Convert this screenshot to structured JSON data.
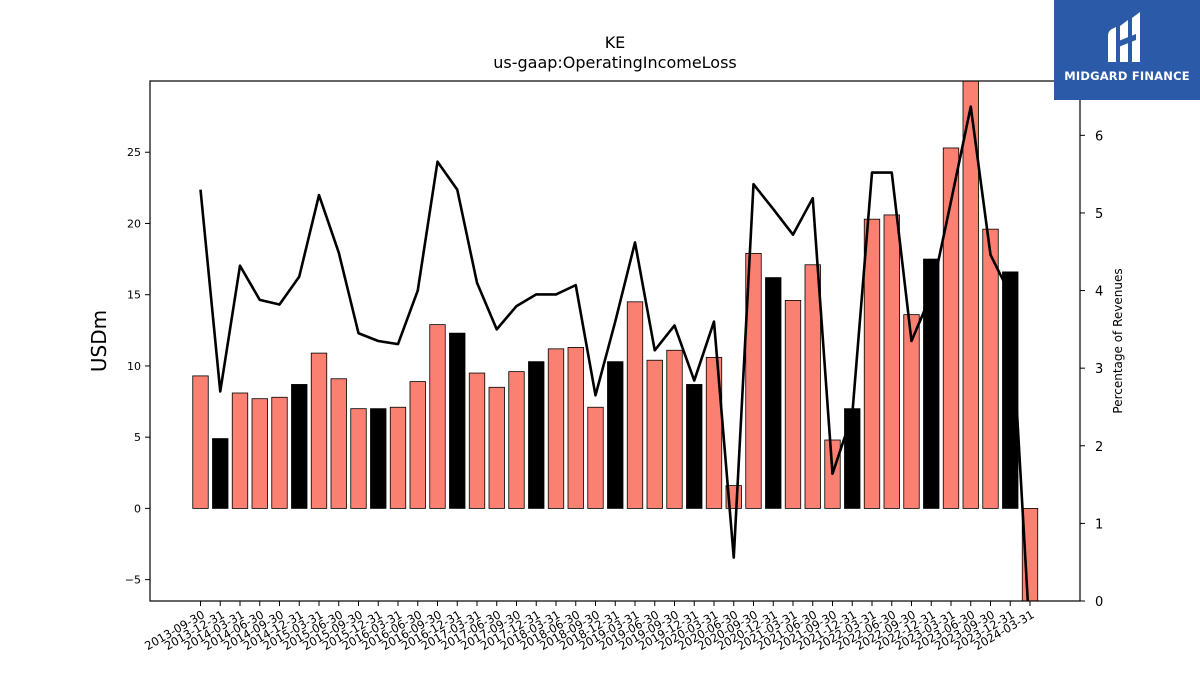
{
  "chart_data": {
    "type": "bar",
    "title": "KE",
    "subtitle": "us-gaap:OperatingIncomeLoss",
    "ylabel": "USDm",
    "y2label": "Percentage of Revenues",
    "ylim": [
      -6.5,
      30
    ],
    "y2lim": [
      0,
      6.7
    ],
    "yticks": [
      -5,
      0,
      5,
      10,
      15,
      20,
      25
    ],
    "y2ticks": [
      0,
      1,
      2,
      3,
      4,
      5,
      6
    ],
    "categories": [
      "2013-09-30",
      "2013-12-31",
      "2014-03-31",
      "2014-06-30",
      "2014-09-30",
      "2014-12-31",
      "2015-03-31",
      "2015-06-30",
      "2015-09-30",
      "2015-12-31",
      "2016-03-31",
      "2016-06-30",
      "2016-09-30",
      "2016-12-31",
      "2017-03-31",
      "2017-06-30",
      "2017-09-30",
      "2017-12-31",
      "2018-03-31",
      "2018-06-30",
      "2018-09-30",
      "2018-12-31",
      "2019-03-31",
      "2019-06-30",
      "2019-09-30",
      "2019-12-31",
      "2020-03-31",
      "2020-06-30",
      "2020-09-30",
      "2020-12-31",
      "2021-03-31",
      "2021-06-30",
      "2021-09-30",
      "2021-12-31",
      "2022-03-31",
      "2022-06-30",
      "2022-09-30",
      "2022-12-31",
      "2023-03-31",
      "2023-06-30",
      "2023-09-30",
      "2023-12-31",
      "2024-03-31"
    ],
    "series": [
      {
        "type": "bar",
        "values": [
          9.3,
          4.9,
          8.1,
          7.7,
          7.8,
          8.7,
          10.9,
          9.1,
          7.0,
          7.0,
          7.1,
          8.9,
          12.9,
          12.3,
          9.5,
          8.5,
          9.6,
          10.3,
          11.2,
          11.3,
          7.1,
          10.3,
          14.5,
          10.4,
          11.1,
          8.7,
          10.6,
          1.6,
          17.9,
          16.2,
          14.6,
          17.1,
          4.8,
          7.0,
          20.3,
          20.6,
          13.6,
          17.5,
          25.3,
          30.2,
          19.6,
          16.6,
          -7.2
        ],
        "bar_colors": [
          "salmon",
          "black",
          "salmon",
          "salmon",
          "salmon",
          "black",
          "salmon",
          "salmon",
          "salmon",
          "black",
          "salmon",
          "salmon",
          "salmon",
          "black",
          "salmon",
          "salmon",
          "salmon",
          "black",
          "salmon",
          "salmon",
          "salmon",
          "black",
          "salmon",
          "salmon",
          "salmon",
          "black",
          "salmon",
          "salmon",
          "salmon",
          "black",
          "salmon",
          "salmon",
          "salmon",
          "black",
          "salmon",
          "salmon",
          "salmon",
          "black",
          "salmon",
          "salmon",
          "salmon",
          "black",
          "salmon"
        ]
      },
      {
        "type": "line",
        "axis": "right",
        "values": [
          5.3,
          2.7,
          4.32,
          3.88,
          3.82,
          4.18,
          5.23,
          4.49,
          3.45,
          3.35,
          3.31,
          4.0,
          5.66,
          5.3,
          4.1,
          3.5,
          3.8,
          3.95,
          3.95,
          4.07,
          2.65,
          3.6,
          4.62,
          3.23,
          3.55,
          2.84,
          3.6,
          0.56,
          5.37,
          5.05,
          4.72,
          5.19,
          1.64,
          2.4,
          5.52,
          5.52,
          3.35,
          3.95,
          5.15,
          6.37,
          4.46,
          3.95,
          -0.5
        ]
      }
    ],
    "colors": {
      "salmon": "#fa8072",
      "black": "#000000",
      "line": "#000000"
    }
  },
  "logo": {
    "text": "MIDGARD FINANCE"
  }
}
